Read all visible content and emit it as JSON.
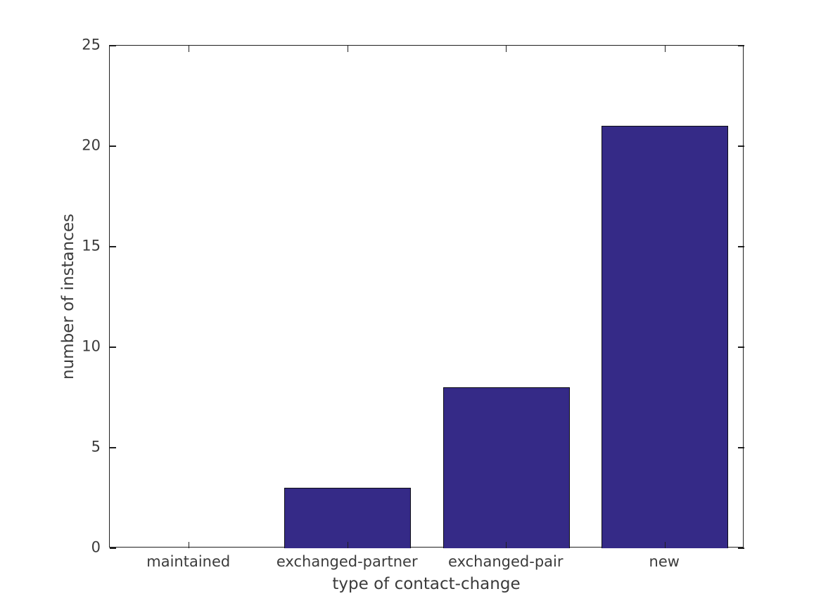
{
  "chart_data": {
    "type": "bar",
    "categories": [
      "maintained",
      "exchanged-partner",
      "exchanged-pair",
      "new"
    ],
    "values": [
      0,
      3,
      8,
      21
    ],
    "title": "",
    "xlabel": "type of contact-change",
    "ylabel": "number of instances",
    "ylim": [
      0,
      25
    ],
    "yticks": [
      0,
      5,
      10,
      15,
      20,
      25
    ],
    "ytick_labels": [
      "0",
      "5",
      "10",
      "15",
      "20",
      "25"
    ],
    "grid": false,
    "legend": "none",
    "bar_width_fraction": 0.8,
    "bar_color": "#352a87",
    "bar_edge_color": "#0d0d14",
    "axis_color": "#1f1f1f",
    "text_color": "#3b3b3b",
    "background_color": "#ffffff"
  }
}
